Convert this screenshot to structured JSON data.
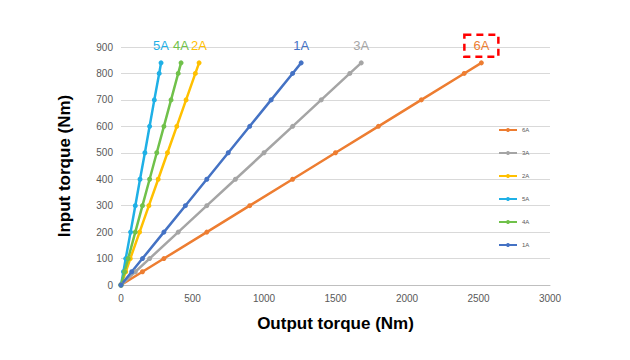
{
  "chart_data": {
    "type": "line",
    "xlabel": "Output torque (Nm)",
    "ylabel": "Input torque (Nm)",
    "xlim": [
      0,
      3000
    ],
    "xticks": [
      0,
      500,
      1000,
      1500,
      2000,
      2500,
      3000
    ],
    "ylim": [
      0,
      900
    ],
    "yticks": [
      0,
      100,
      200,
      300,
      400,
      500,
      600,
      700,
      800,
      900
    ],
    "grid": true,
    "legend": "right",
    "marker": "circle",
    "series": [
      {
        "name": "6A",
        "color": "#ed7d31",
        "x": [
          0,
          150,
          300,
          600,
          900,
          1200,
          1500,
          1800,
          2100,
          2400,
          2520
        ],
        "values": [
          0,
          50,
          100,
          200,
          300,
          400,
          500,
          600,
          700,
          800,
          840
        ]
      },
      {
        "name": "3A",
        "color": "#a5a5a5",
        "x": [
          0,
          100,
          200,
          400,
          600,
          800,
          1000,
          1200,
          1400,
          1600,
          1680
        ],
        "values": [
          0,
          50,
          100,
          200,
          300,
          400,
          500,
          600,
          700,
          800,
          840
        ]
      },
      {
        "name": "2A",
        "color": "#ffc000",
        "x": [
          0,
          33,
          65,
          130,
          195,
          260,
          325,
          390,
          455,
          520,
          546
        ],
        "values": [
          0,
          50,
          100,
          200,
          300,
          400,
          500,
          600,
          700,
          800,
          840
        ]
      },
      {
        "name": "5A",
        "color": "#1fb0e6",
        "x": [
          0,
          17,
          33,
          67,
          100,
          133,
          167,
          200,
          233,
          267,
          280
        ],
        "values": [
          0,
          50,
          100,
          200,
          300,
          400,
          500,
          600,
          700,
          800,
          840
        ]
      },
      {
        "name": "4A",
        "color": "#70c14a",
        "x": [
          0,
          25,
          50,
          100,
          150,
          200,
          250,
          300,
          350,
          400,
          420
        ],
        "values": [
          0,
          50,
          100,
          200,
          300,
          400,
          500,
          600,
          700,
          800,
          840
        ]
      },
      {
        "name": "1A",
        "color": "#4472c4",
        "x": [
          0,
          75,
          150,
          300,
          450,
          600,
          750,
          900,
          1050,
          1200,
          1260
        ],
        "values": [
          0,
          50,
          100,
          200,
          300,
          400,
          500,
          600,
          700,
          800,
          840
        ]
      }
    ]
  }
}
